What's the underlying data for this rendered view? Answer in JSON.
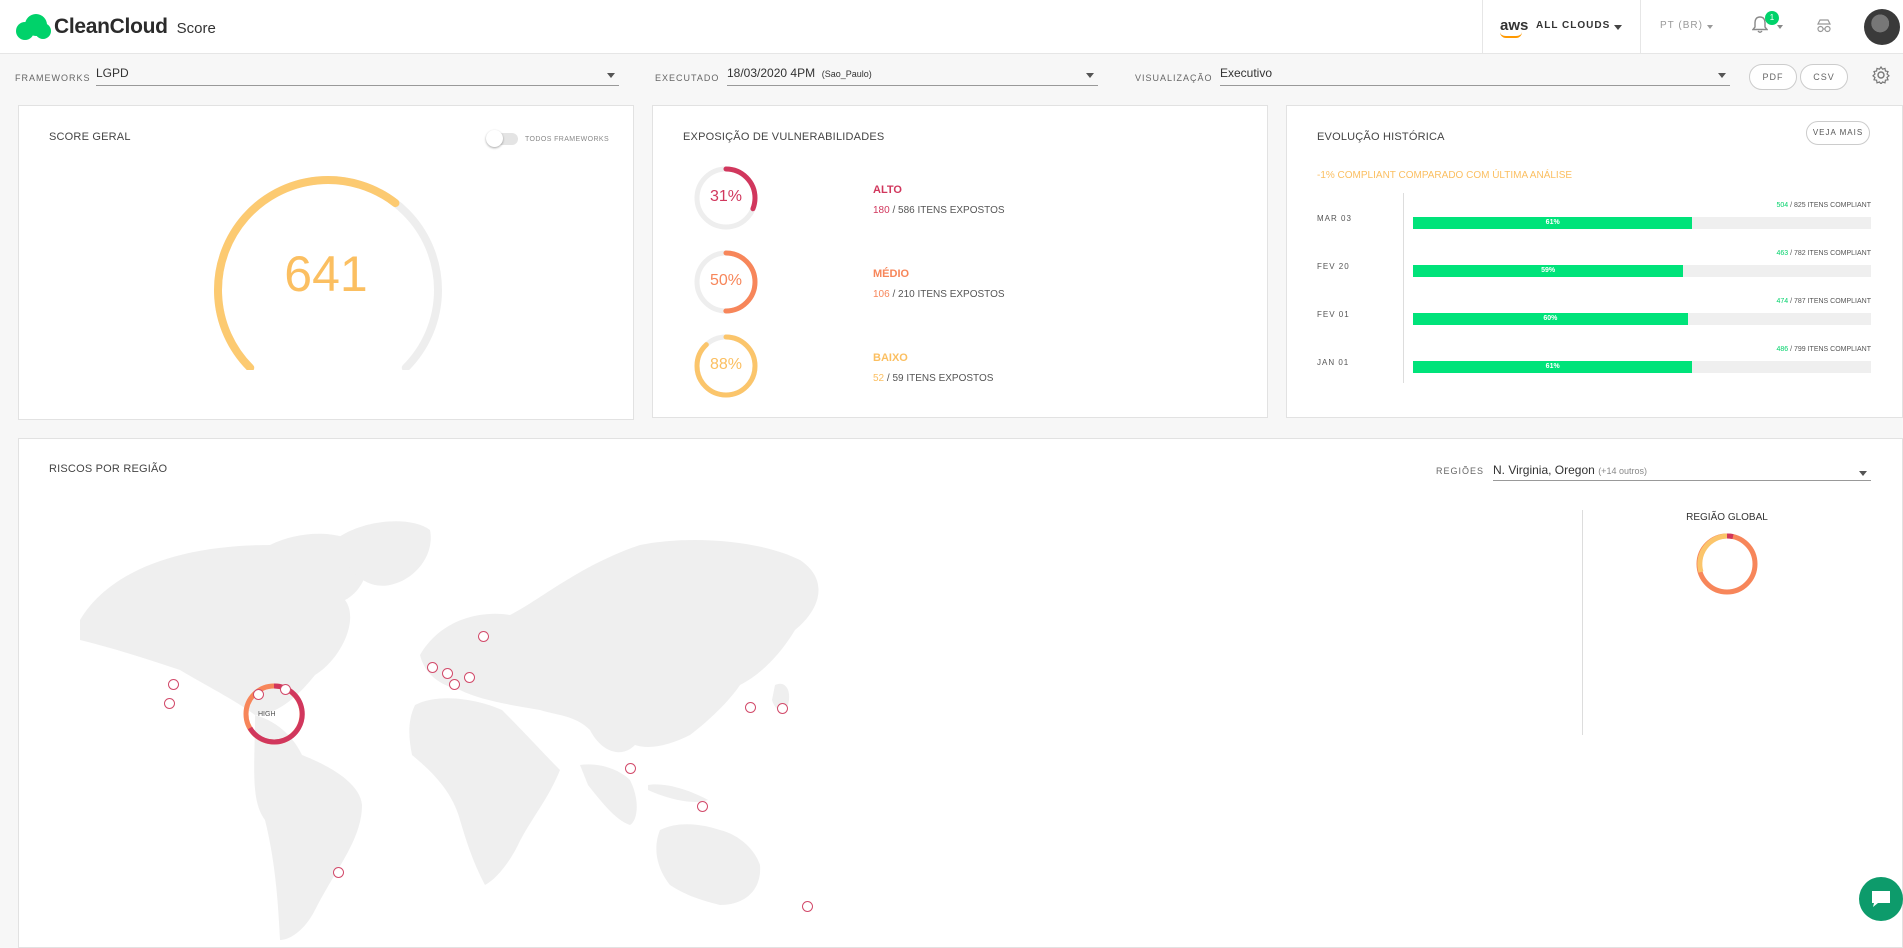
{
  "header": {
    "brand": "CleanCloud",
    "product": "Score",
    "cloud_provider": "aws",
    "cloud_selector": "ALL CLOUDS",
    "language": "PT (BR)",
    "notifications_count": "1"
  },
  "filters": {
    "frameworks_label": "FRAMEWORKS",
    "frameworks_value": "LGPD",
    "executed_label": "EXECUTADO",
    "executed_value": "18/03/2020 4PM",
    "executed_tz": "(Sao_Paulo)",
    "view_label": "VISUALIZAÇÃO",
    "view_value": "Executivo",
    "pdf_label": "PDF",
    "csv_label": "CSV"
  },
  "score_card": {
    "title": "SCORE GERAL",
    "toggle_label": "TODOS FRAMEWORKS",
    "score": "641",
    "gauge_fraction": 0.64
  },
  "vuln_card": {
    "title": "EXPOSIÇÃO DE VULNERABILIDADES",
    "items": [
      {
        "pct": "31%",
        "fraction": 0.31,
        "color": "#d1375d",
        "name": "ALTO",
        "count": "180",
        "total": " / 586 ITENS EXPOSTOS"
      },
      {
        "pct": "50%",
        "fraction": 0.5,
        "color": "#f7865a",
        "name": "MÉDIO",
        "count": "106",
        "total": " / 210 ITENS EXPOSTOS"
      },
      {
        "pct": "88%",
        "fraction": 0.88,
        "color": "#fbc56b",
        "name": "BAIXO",
        "count": "52",
        "total": " / 59 ITENS EXPOSTOS"
      }
    ]
  },
  "history_card": {
    "title": "EVOLUÇÃO HISTÓRICA",
    "button": "VEJA MAIS",
    "alert": "-1% COMPLIANT COMPARADO COM ÚLTIMA ANÁLISE",
    "rows": [
      {
        "date": "MAR 03",
        "compliant": "504",
        "total": " / 825 ITENS COMPLIANT",
        "pct": "61%",
        "fraction": 0.61
      },
      {
        "date": "FEV 20",
        "compliant": "463",
        "total": " / 782 ITENS COMPLIANT",
        "pct": "59%",
        "fraction": 0.59
      },
      {
        "date": "FEV 01",
        "compliant": "474",
        "total": " / 787 ITENS COMPLIANT",
        "pct": "60%",
        "fraction": 0.6
      },
      {
        "date": "JAN 01",
        "compliant": "486",
        "total": " / 799 ITENS COMPLIANT",
        "pct": "61%",
        "fraction": 0.61
      }
    ]
  },
  "region_card": {
    "title": "RISCOS POR REGIÃO",
    "regions_label": "REGIÕES",
    "regions_value": "N. Virginia, Oregon",
    "regions_extra": "(+14 outros)",
    "high_label": "HIGH",
    "global_title": "REGIÃO GLOBAL"
  },
  "colors": {
    "accent": "#00d26a",
    "high": "#d1375d",
    "medium": "#f7865a",
    "low": "#fbc56b"
  }
}
